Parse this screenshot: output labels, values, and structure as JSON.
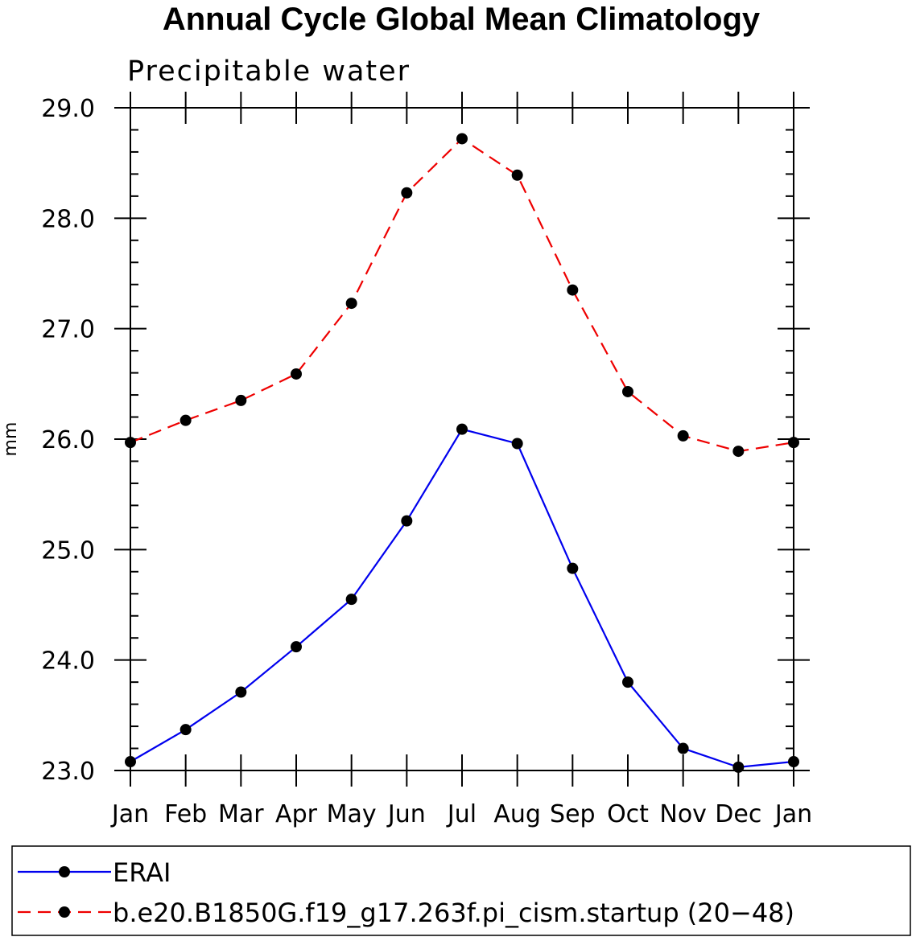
{
  "chart_data": {
    "type": "line",
    "title": "Annual Cycle Global Mean Climatology",
    "subtitle": "Precipitable water",
    "xlabel": "",
    "ylabel": "mm",
    "categories": [
      "Jan",
      "Feb",
      "Mar",
      "Apr",
      "May",
      "Jun",
      "Jul",
      "Aug",
      "Sep",
      "Oct",
      "Nov",
      "Dec",
      "Jan"
    ],
    "ylim": [
      23.0,
      29.0
    ],
    "yticks": [
      "23.0",
      "24.0",
      "25.0",
      "26.0",
      "27.0",
      "28.0",
      "29.0"
    ],
    "grid": false,
    "legend_position": "bottom",
    "series": [
      {
        "name": "ERAI",
        "color": "#0000ee",
        "line_style": "solid",
        "marker": "circle",
        "values": [
          23.08,
          23.37,
          23.71,
          24.12,
          24.55,
          25.26,
          26.09,
          25.96,
          24.83,
          23.8,
          23.2,
          23.03,
          23.08
        ]
      },
      {
        "name": "b.e20.B1850G.f19_g17.263f.pi_cism.startup (20−48)",
        "color": "#ee0000",
        "line_style": "dashed",
        "marker": "circle",
        "values": [
          25.97,
          26.17,
          26.35,
          26.59,
          27.23,
          28.23,
          28.72,
          28.39,
          27.35,
          26.43,
          26.03,
          25.89,
          25.97
        ]
      }
    ]
  }
}
